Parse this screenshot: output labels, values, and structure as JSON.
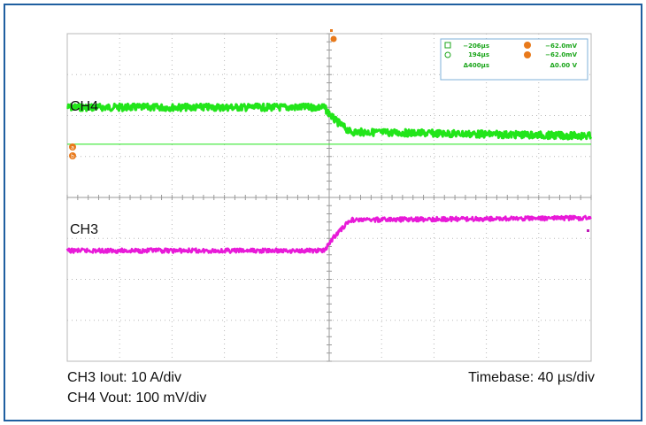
{
  "chart_data": {
    "type": "line",
    "title": "",
    "xlabel": "",
    "ylabel": "",
    "x_unit": "µs",
    "xlim": [
      -200,
      200
    ],
    "divisions": {
      "x": 10,
      "y": 8
    },
    "grid": true,
    "series": [
      {
        "name": "CH4",
        "color": "#22e51a",
        "x": [
          -200,
          -4,
          4,
          16,
          200
        ],
        "y_div": [
          2.2,
          2.2,
          1.9,
          1.6,
          1.5
        ]
      },
      {
        "name": "CH3",
        "color": "#e81ad8",
        "x": [
          -200,
          -4,
          4,
          16,
          200
        ],
        "y_div": [
          -1.3,
          -1.3,
          -0.95,
          -0.55,
          -0.5
        ]
      }
    ],
    "channel_labels": [
      "CH4",
      "CH3"
    ],
    "cursor_readout": {
      "t1": "−206µs",
      "t2": "194µs",
      "dt": "Δ400µs",
      "v1": "−62.0mV",
      "v2": "−62.0mV",
      "dv": "Δ0.00 V"
    },
    "cursor_markers": [
      "a",
      "b"
    ]
  },
  "captions": {
    "iout": "CH3 Iout: 10 A/div",
    "vout": "CH4 Vout: 100 mV/div",
    "timebase": "Timebase: 40 µs/div"
  },
  "colors": {
    "frame": "#1f5fa0",
    "grid": "#b8b8b8",
    "marker": "#e8791a",
    "readout_text": "#1aa51a"
  }
}
